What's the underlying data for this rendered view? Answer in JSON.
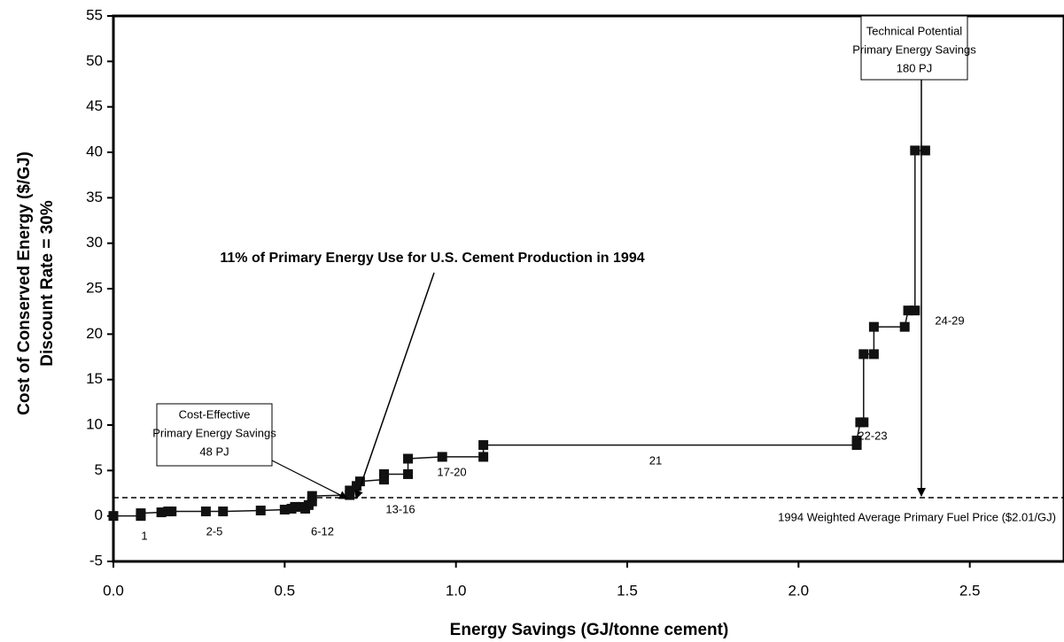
{
  "chart_data": {
    "type": "line",
    "x_label": "Energy Savings (GJ/tonne cement)",
    "y_label": [
      "Cost of Conserved Energy ($/GJ)",
      "Discount Rate = 30%"
    ],
    "xlim": [
      0,
      2.775
    ],
    "ylim": [
      -5,
      55
    ],
    "xticks": [
      {
        "value": 0,
        "label": "0.0"
      },
      {
        "value": 0.5,
        "label": "0.5"
      },
      {
        "value": 1,
        "label": "1.0"
      },
      {
        "value": 1.5,
        "label": "1.5"
      },
      {
        "value": 2,
        "label": "2.0"
      },
      {
        "value": 2.5,
        "label": "2.5"
      }
    ],
    "yticks": [
      -5,
      0,
      5,
      10,
      15,
      20,
      25,
      30,
      35,
      40,
      45,
      50,
      55
    ],
    "grid": false,
    "series": [
      {
        "color": "#111111",
        "x": [
          0.0,
          0.08,
          0.08,
          0.14,
          0.16,
          0.17,
          0.27,
          0.32,
          0.43,
          0.5,
          0.52,
          0.53,
          0.55,
          0.56,
          0.57,
          0.58,
          0.58,
          0.69,
          0.69,
          0.71,
          0.72,
          0.79,
          0.79,
          0.86,
          0.86,
          0.96,
          1.08,
          1.08,
          2.17,
          2.17,
          2.18,
          2.19,
          2.19,
          2.22,
          2.22,
          2.31,
          2.32,
          2.34,
          2.34,
          2.37
        ],
        "values": [
          0.0,
          0.0,
          0.3,
          0.4,
          0.5,
          0.5,
          0.5,
          0.5,
          0.6,
          0.7,
          0.8,
          1.0,
          1.0,
          0.8,
          1.2,
          1.6,
          2.2,
          2.3,
          2.8,
          3.3,
          3.8,
          4.0,
          4.6,
          4.6,
          6.3,
          6.5,
          6.5,
          7.8,
          7.8,
          8.3,
          10.3,
          10.3,
          17.8,
          17.8,
          20.8,
          20.8,
          22.6,
          22.6,
          40.2,
          40.2
        ]
      }
    ],
    "reference_line": {
      "value": 2.01,
      "label": "1994 Weighted Average Primary Fuel Price ($2.01/GJ)"
    },
    "step_labels": [
      "1",
      "2-5",
      "6-12",
      "13-16",
      "17-20",
      "21",
      "22-23",
      "24-29"
    ],
    "annotation": "11% of Primary Energy Use for U.S. Cement Production in 1994",
    "cost_effective_box": [
      "Cost-Effective",
      "Primary Energy Savings",
      "48 PJ"
    ],
    "technical_box": [
      "Technical Potential",
      "Primary Energy Savings",
      "180 PJ"
    ]
  }
}
